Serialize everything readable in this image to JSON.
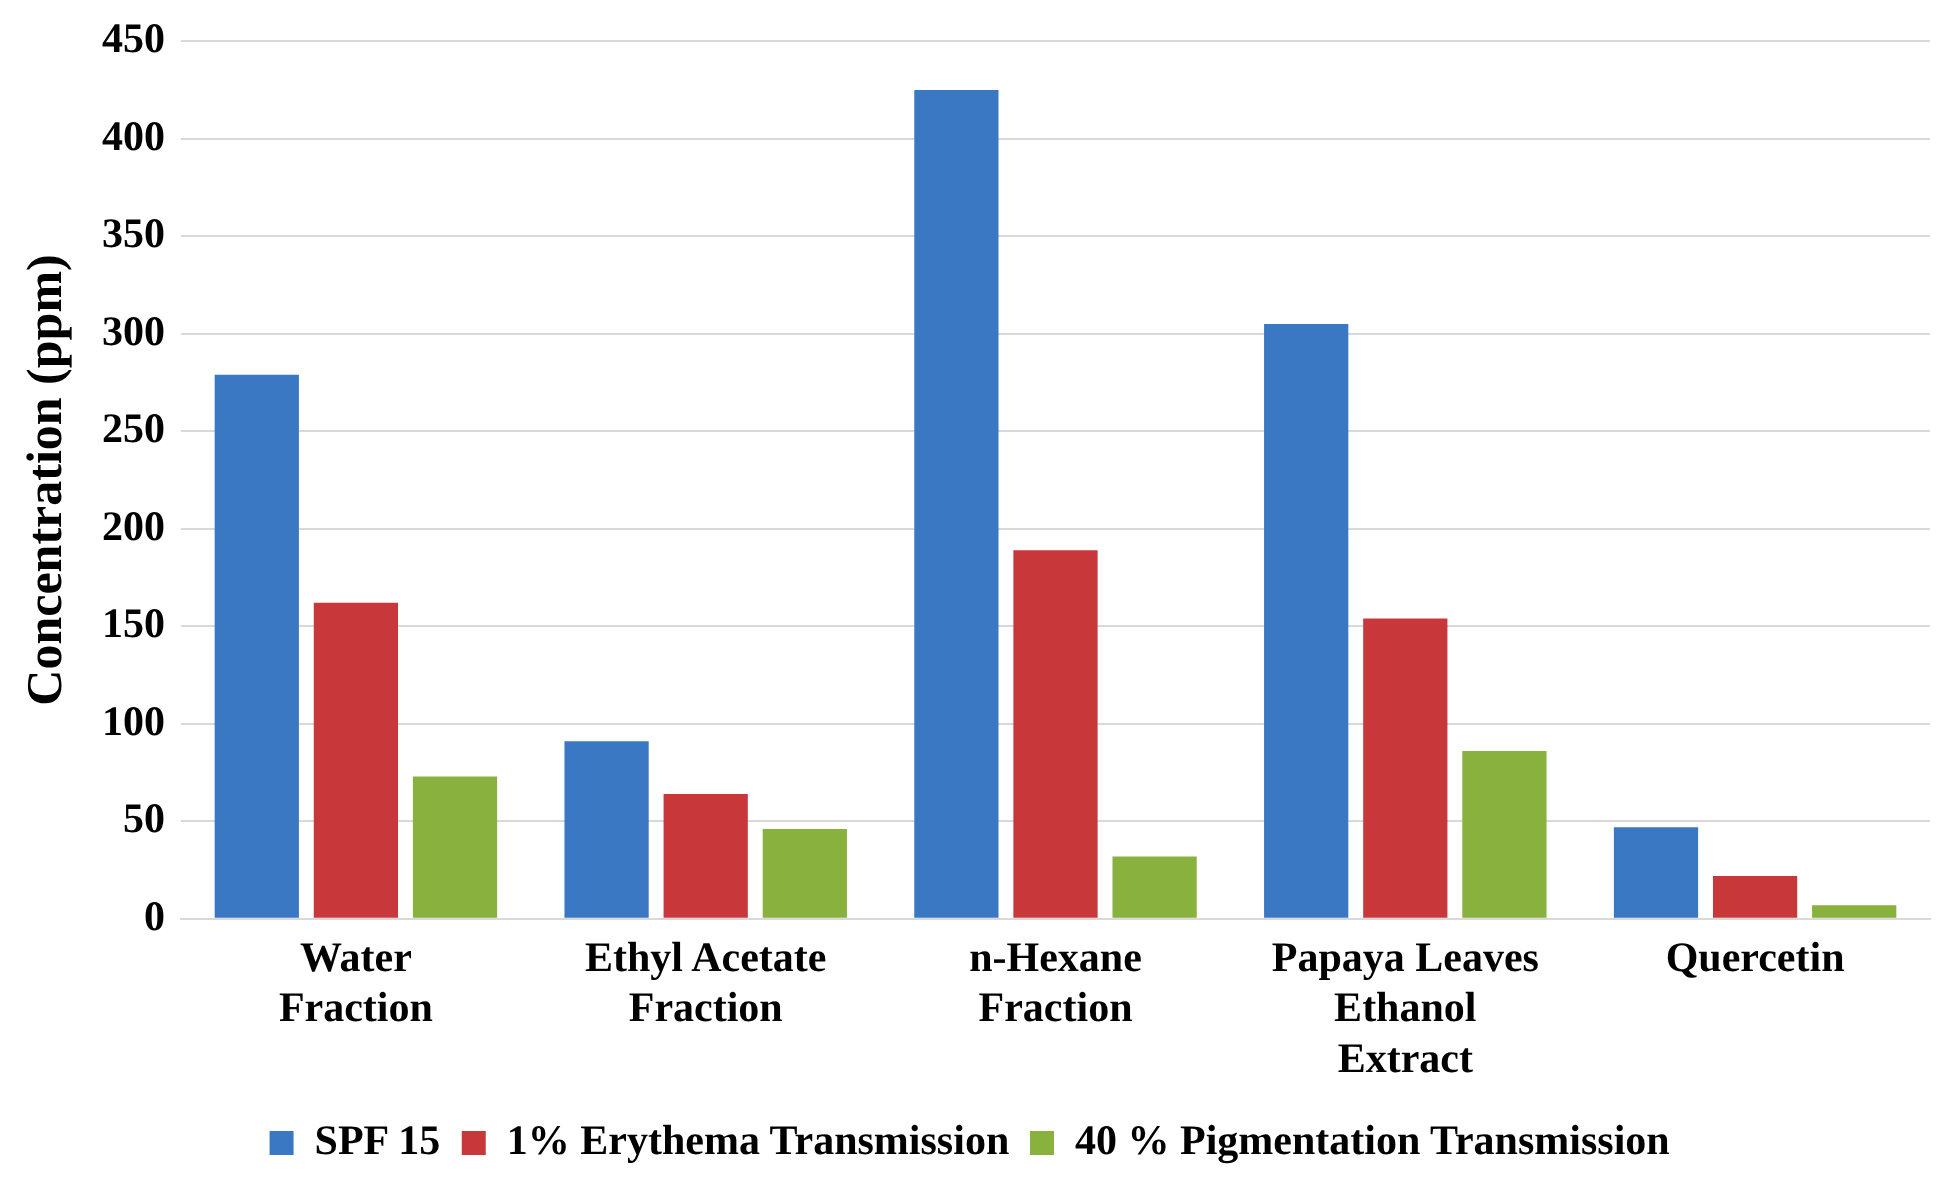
{
  "chart_data": {
    "type": "bar",
    "ylabel": "Concentration (ppm)",
    "categories": [
      "Water\nFraction",
      "Ethyl Acetate\nFraction",
      "n-Hexane\nFraction",
      "Papaya Leaves\nEthanol\nExtract",
      "Quercetin"
    ],
    "series": [
      {
        "name": "SPF 15",
        "color": "#3a78c4",
        "values": [
          279,
          91,
          425,
          305,
          47
        ]
      },
      {
        "name": "1% Erythema Transmission",
        "color": "#c8383a",
        "values": [
          162,
          64,
          189,
          154,
          22
        ]
      },
      {
        "name": "40 % Pigmentation Transmission",
        "color": "#88b13e",
        "values": [
          73,
          46,
          32,
          86,
          7
        ]
      }
    ],
    "ylim": [
      0,
      450
    ],
    "yticks": [
      0,
      50,
      100,
      150,
      200,
      250,
      300,
      350,
      400,
      450
    ],
    "grid": "y",
    "legend": "bottom"
  }
}
